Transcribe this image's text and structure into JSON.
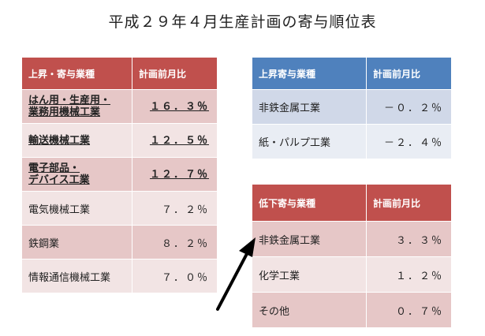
{
  "title": "平成２９年４月生産計画の寄与順位表",
  "rise_table": {
    "headers": [
      "上昇・寄与業種",
      "計画前月比"
    ],
    "rows": [
      {
        "lines": [
          "はん用・生産用・",
          "業務用機械工業"
        ],
        "value": "１６．３％",
        "emphasis": true
      },
      {
        "lines": [
          "輸送機械工業"
        ],
        "value": "１２．５％",
        "emphasis": true
      },
      {
        "lines": [
          "電子部品・",
          "デバイス工業"
        ],
        "value": "１２．７％",
        "emphasis": true
      },
      {
        "lines": [
          "電気機械工業"
        ],
        "value": "７．２％",
        "emphasis": false
      },
      {
        "lines": [
          "鉄鋼業"
        ],
        "value": "８．２％",
        "emphasis": false
      },
      {
        "lines": [
          "情報通信機械工業"
        ],
        "value": "７．０％",
        "emphasis": false
      }
    ]
  },
  "rise_contrib_table": {
    "headers": [
      "上昇寄与業種",
      "計画前月比"
    ],
    "rows": [
      {
        "label": "非鉄金属工業",
        "value": "－０．２％"
      },
      {
        "label": "紙・パルプ工業",
        "value": "－２．４％"
      }
    ]
  },
  "decline_table": {
    "headers": [
      "低下寄与業種",
      "計画前月比"
    ],
    "rows": [
      {
        "label": "非鉄金属工業",
        "value": "３．３％"
      },
      {
        "label": "化学工業",
        "value": "１．２％"
      },
      {
        "label": "その他",
        "value": "０．７％"
      }
    ]
  },
  "colors": {
    "red_header": "#c0504d",
    "blue_header": "#4f81bd",
    "red_row_a": "#e6c7c7",
    "red_row_b": "#f2e4e4",
    "blue_row_a": "#d0d8e8",
    "blue_row_b": "#e9edf4",
    "arrow": "#000000"
  }
}
